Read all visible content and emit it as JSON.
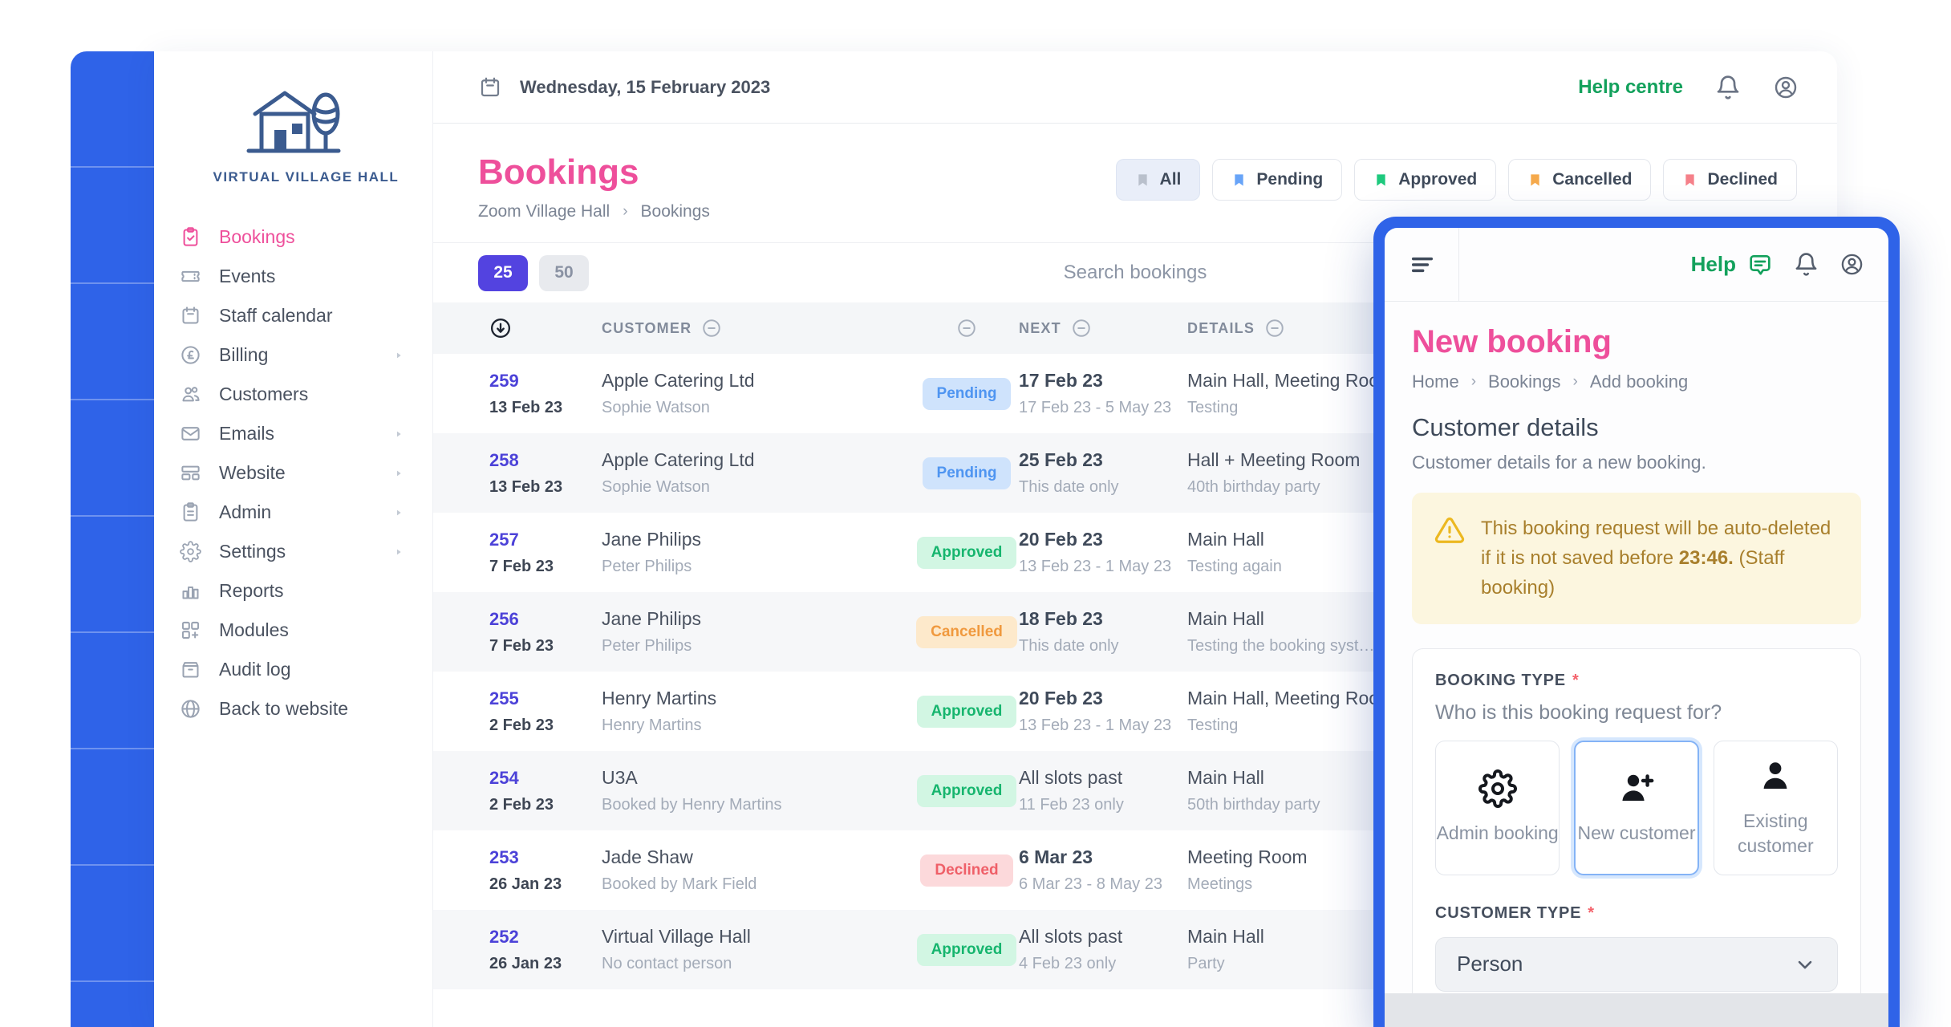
{
  "sidebar": {
    "logo_title": "VIRTUAL VILLAGE HALL",
    "items": [
      {
        "label": "Bookings",
        "icon": "clipboard-check-icon",
        "active": true,
        "submenu": false
      },
      {
        "label": "Events",
        "icon": "ticket-icon",
        "active": false,
        "submenu": false
      },
      {
        "label": "Staff calendar",
        "icon": "calendar-icon",
        "active": false,
        "submenu": false
      },
      {
        "label": "Billing",
        "icon": "pound-icon",
        "active": false,
        "submenu": true
      },
      {
        "label": "Customers",
        "icon": "people-icon",
        "active": false,
        "submenu": false
      },
      {
        "label": "Emails",
        "icon": "envelope-icon",
        "active": false,
        "submenu": true
      },
      {
        "label": "Website",
        "icon": "browser-icon",
        "active": false,
        "submenu": true
      },
      {
        "label": "Admin",
        "icon": "clipboard-list-icon",
        "active": false,
        "submenu": true
      },
      {
        "label": "Settings",
        "icon": "gear-icon",
        "active": false,
        "submenu": true
      },
      {
        "label": "Reports",
        "icon": "bar-chart-icon",
        "active": false,
        "submenu": false
      },
      {
        "label": "Modules",
        "icon": "modules-icon",
        "active": false,
        "submenu": false
      },
      {
        "label": "Audit log",
        "icon": "archive-icon",
        "active": false,
        "submenu": false
      },
      {
        "label": "Back to website",
        "icon": "globe-icon",
        "active": false,
        "submenu": false
      }
    ]
  },
  "topbar": {
    "date": "Wednesday, 15 February 2023",
    "help_label": "Help centre"
  },
  "bookings": {
    "title": "Bookings",
    "breadcrumb": [
      "Zoom Village Hall",
      "Bookings"
    ],
    "filters": [
      {
        "label": "All",
        "icon_color": "#b9c0cc",
        "active": true
      },
      {
        "label": "Pending",
        "icon_color": "#68a4f8",
        "active": false
      },
      {
        "label": "Approved",
        "icon_color": "#1ec97d",
        "active": false
      },
      {
        "label": "Cancelled",
        "icon_color": "#f5a94b",
        "active": false
      },
      {
        "label": "Declined",
        "icon_color": "#f58089",
        "active": false
      }
    ],
    "page_sizes": [
      {
        "label": "25",
        "active": true
      },
      {
        "label": "50",
        "active": false
      }
    ],
    "search_placeholder": "Search bookings",
    "columns": {
      "customer": "CUSTOMER",
      "next": "NEXT",
      "details": "DETAILS"
    },
    "status_colors": {
      "Pending": {
        "bg": "#cfe3fc",
        "text": "#4f95f1"
      },
      "Approved": {
        "bg": "#d2f6e3",
        "text": "#16b56e"
      },
      "Cancelled": {
        "bg": "#fde9cb",
        "text": "#f0993e"
      },
      "Declined": {
        "bg": "#fcd9db",
        "text": "#ef5f68"
      }
    },
    "rows": [
      {
        "id": "259",
        "date": "13 Feb 23",
        "customer": "Apple Catering Ltd",
        "contact": "Sophie Watson",
        "status": "Pending",
        "next": "17 Feb 23",
        "next_sub": "17 Feb 23 - 5 May 23",
        "next_bold": true,
        "details": "Main Hall, Meeting Room",
        "details_sub": "Testing"
      },
      {
        "id": "258",
        "date": "13 Feb 23",
        "customer": "Apple Catering Ltd",
        "contact": "Sophie Watson",
        "status": "Pending",
        "next": "25 Feb 23",
        "next_sub": "This date only",
        "next_bold": true,
        "details": "Hall + Meeting Room",
        "details_sub": "40th birthday party"
      },
      {
        "id": "257",
        "date": "7 Feb 23",
        "customer": "Jane Philips",
        "contact": "Peter Philips",
        "status": "Approved",
        "next": "20 Feb 23",
        "next_sub": "13 Feb 23 - 1 May 23",
        "next_bold": true,
        "details": "Main Hall",
        "details_sub": "Testing again"
      },
      {
        "id": "256",
        "date": "7 Feb 23",
        "customer": "Jane Philips",
        "contact": "Peter Philips",
        "status": "Cancelled",
        "next": "18 Feb 23",
        "next_sub": "This date only",
        "next_bold": true,
        "details": "Main Hall",
        "details_sub": "Testing the booking syste..."
      },
      {
        "id": "255",
        "date": "2 Feb 23",
        "customer": "Henry Martins",
        "contact": "Henry Martins",
        "status": "Approved",
        "next": "20 Feb 23",
        "next_sub": "13 Feb 23 - 1 May 23",
        "next_bold": true,
        "details": "Main Hall, Meeting Room",
        "details_sub": "Testing"
      },
      {
        "id": "254",
        "date": "2 Feb 23",
        "customer": "U3A",
        "contact": "Booked by Henry Martins",
        "status": "Approved",
        "next": "All slots past",
        "next_sub": "11 Feb 23 only",
        "next_bold": false,
        "details": "Main Hall",
        "details_sub": "50th birthday party"
      },
      {
        "id": "253",
        "date": "26 Jan 23",
        "customer": "Jade Shaw",
        "contact": "Booked by Mark Field",
        "status": "Declined",
        "next": "6 Mar 23",
        "next_sub": "6 Mar 23 - 8 May 23",
        "next_bold": true,
        "details": "Meeting Room",
        "details_sub": "Meetings"
      },
      {
        "id": "252",
        "date": "26 Jan 23",
        "customer": "Virtual Village Hall",
        "contact": "No contact person",
        "status": "Approved",
        "next": "All slots past",
        "next_sub": "4 Feb 23 only",
        "next_bold": false,
        "details": "Main Hall",
        "details_sub": "Party"
      }
    ]
  },
  "panel": {
    "help_label": "Help",
    "title": "New booking",
    "breadcrumb": [
      "Home",
      "Bookings",
      "Add booking"
    ],
    "section_title": "Customer details",
    "section_sub": "Customer details for a new booking.",
    "warning": {
      "pre": "This booking request will be auto-deleted if it is not saved before ",
      "time": "23:46.",
      "post": " (Staff booking)"
    },
    "booking_type": {
      "label": "BOOKING TYPE",
      "question": "Who is this booking request for?",
      "options": [
        {
          "label": "Admin booking",
          "icon": "gear-big-icon",
          "selected": false
        },
        {
          "label": "New customer",
          "icon": "person-plus-icon",
          "selected": true
        },
        {
          "label": "Existing customer",
          "icon": "person-icon",
          "selected": false
        }
      ]
    },
    "customer_type": {
      "label": "CUSTOMER TYPE",
      "value": "Person"
    }
  },
  "colors": {
    "accent_blue": "#2f63e8",
    "brand_pink": "#ee4f9b",
    "brand_green": "#13a15c",
    "page_size_active": "#5343e0"
  }
}
